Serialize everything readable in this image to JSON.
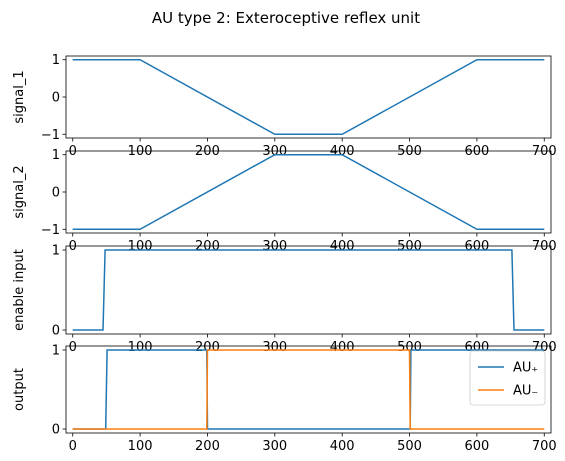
{
  "figure": {
    "title": "AU type 2: Exteroceptive reflex unit"
  },
  "colors": {
    "blue": "#1f77b4",
    "orange": "#ff7f0e"
  },
  "chart_data": [
    {
      "type": "line",
      "ylabel": "signal_1",
      "xlim": [
        -10,
        710
      ],
      "ylim": [
        -1.1,
        1.1
      ],
      "xticks": [
        "0",
        "100",
        "200",
        "300",
        "400",
        "500",
        "600",
        "700"
      ],
      "xtick_values": [
        0,
        100,
        200,
        300,
        400,
        500,
        600,
        700
      ],
      "yticks": [
        "−1",
        "0",
        "1"
      ],
      "ytick_values": [
        -1,
        0,
        1
      ],
      "series": [
        {
          "color_key": "blue",
          "x": [
            0,
            100,
            300,
            400,
            600,
            700
          ],
          "y": [
            1,
            1,
            -1,
            -1,
            1,
            1
          ]
        }
      ]
    },
    {
      "type": "line",
      "ylabel": "signal_2",
      "xlim": [
        -10,
        710
      ],
      "ylim": [
        -1.1,
        1.1
      ],
      "xticks": [
        "0",
        "100",
        "200",
        "300",
        "400",
        "500",
        "600",
        "700"
      ],
      "xtick_values": [
        0,
        100,
        200,
        300,
        400,
        500,
        600,
        700
      ],
      "yticks": [
        "−1",
        "0",
        "1"
      ],
      "ytick_values": [
        -1,
        0,
        1
      ],
      "series": [
        {
          "color_key": "blue",
          "x": [
            0,
            100,
            300,
            400,
            600,
            700
          ],
          "y": [
            -1,
            -1,
            1,
            1,
            -1,
            -1
          ]
        }
      ]
    },
    {
      "type": "line",
      "ylabel": "enable input",
      "xlim": [
        -10,
        710
      ],
      "ylim": [
        -0.05,
        1.05
      ],
      "xticks": [
        "0",
        "100",
        "200",
        "300",
        "400",
        "500",
        "600",
        "700"
      ],
      "xtick_values": [
        0,
        100,
        200,
        300,
        400,
        500,
        600,
        700
      ],
      "yticks": [
        "0",
        "1"
      ],
      "ytick_values": [
        0,
        1
      ],
      "series": [
        {
          "color_key": "blue",
          "x": [
            0,
            45,
            48,
            652,
            655,
            700
          ],
          "y": [
            0,
            0,
            1,
            1,
            0,
            0
          ]
        }
      ]
    },
    {
      "type": "line",
      "ylabel": "output",
      "xlim": [
        -10,
        710
      ],
      "ylim": [
        -0.05,
        1.05
      ],
      "xticks": [
        "0",
        "100",
        "200",
        "300",
        "400",
        "500",
        "600",
        "700"
      ],
      "xtick_values": [
        0,
        100,
        200,
        300,
        400,
        500,
        600,
        700
      ],
      "yticks": [
        "0",
        "1"
      ],
      "ytick_values": [
        0,
        1
      ],
      "legend": {
        "placement": "top-right"
      },
      "series": [
        {
          "name": "AU₊",
          "color_key": "blue",
          "x": [
            0,
            49,
            51,
            199,
            200,
            501,
            502,
            700
          ],
          "y": [
            0,
            0,
            1,
            1,
            0,
            0,
            1,
            1
          ]
        },
        {
          "name": "AU₋",
          "color_key": "orange",
          "x": [
            0,
            199,
            200,
            500,
            501,
            700
          ],
          "y": [
            0,
            0,
            1,
            1,
            0,
            0
          ]
        }
      ]
    }
  ]
}
